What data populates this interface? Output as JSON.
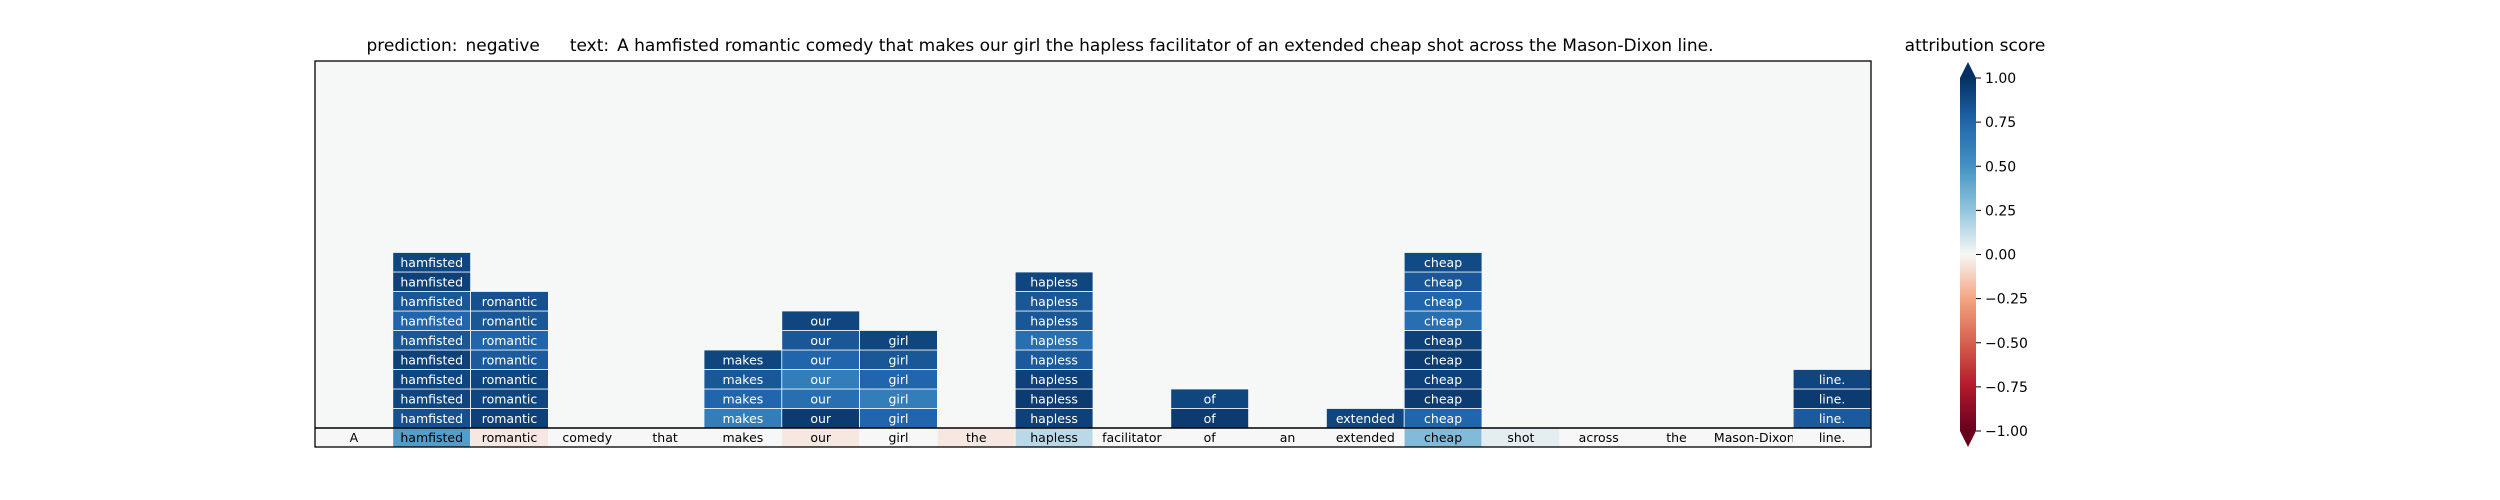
{
  "chart_data": {
    "type": "heatmap",
    "title_prefix": "prediction:",
    "prediction": "negative",
    "text_prefix": "text:",
    "text": "A hamfisted romantic comedy that makes our girl the hapless facilitator of an extended cheap shot across the Mason-Dixon line.",
    "tokens": [
      "A",
      "hamfisted",
      "romantic",
      "comedy",
      "that",
      "makes",
      "our",
      "girl",
      "the",
      "hapless",
      "facilitator",
      "of",
      "an",
      "extended",
      "cheap",
      "shot",
      "across",
      "the",
      "Mason-Dixon",
      "line."
    ],
    "base_scores": [
      0.0,
      0.45,
      -0.05,
      0.0,
      0.0,
      0.0,
      -0.05,
      0.0,
      -0.05,
      0.15,
      0.0,
      0.0,
      0.0,
      0.0,
      0.3,
      0.05,
      0.0,
      0.0,
      0.0,
      0.0
    ],
    "stacks": [
      {
        "token_index": 1,
        "scores": [
          0.85,
          0.9,
          0.9,
          0.92,
          0.82,
          0.75,
          0.82,
          0.92,
          0.9
        ]
      },
      {
        "token_index": 2,
        "scores": [
          0.92,
          0.9,
          0.9,
          0.8,
          0.75,
          0.82,
          0.85
        ]
      },
      {
        "token_index": 5,
        "scores": [
          0.62,
          0.75,
          0.82,
          0.9
        ]
      },
      {
        "token_index": 6,
        "scores": [
          0.95,
          0.7,
          0.62,
          0.75,
          0.82,
          0.9
        ]
      },
      {
        "token_index": 7,
        "scores": [
          0.75,
          0.62,
          0.75,
          0.82,
          0.9
        ]
      },
      {
        "token_index": 9,
        "scores": [
          0.92,
          0.95,
          0.92,
          0.8,
          0.7,
          0.82,
          0.82,
          0.9
        ]
      },
      {
        "token_index": 11,
        "scores": [
          0.95,
          0.9
        ]
      },
      {
        "token_index": 13,
        "scores": [
          0.9
        ]
      },
      {
        "token_index": 14,
        "scores": [
          0.75,
          0.95,
          0.92,
          0.95,
          0.92,
          0.7,
          0.75,
          0.82,
          0.88
        ]
      },
      {
        "token_index": 19,
        "scores": [
          0.8,
          0.95,
          0.9
        ]
      }
    ],
    "colorbar": {
      "label": "attribution score",
      "range": [
        -1,
        1
      ],
      "ticks": [
        "1.00",
        "0.75",
        "0.50",
        "0.25",
        "0.00",
        "−0.25",
        "−0.50",
        "−0.75",
        "−1.00"
      ],
      "tick_values": [
        1,
        0.75,
        0.5,
        0.25,
        0,
        -0.25,
        -0.5,
        -0.75,
        -1
      ]
    },
    "colormap": "RdBu",
    "background_color": "#f6f7f7"
  }
}
